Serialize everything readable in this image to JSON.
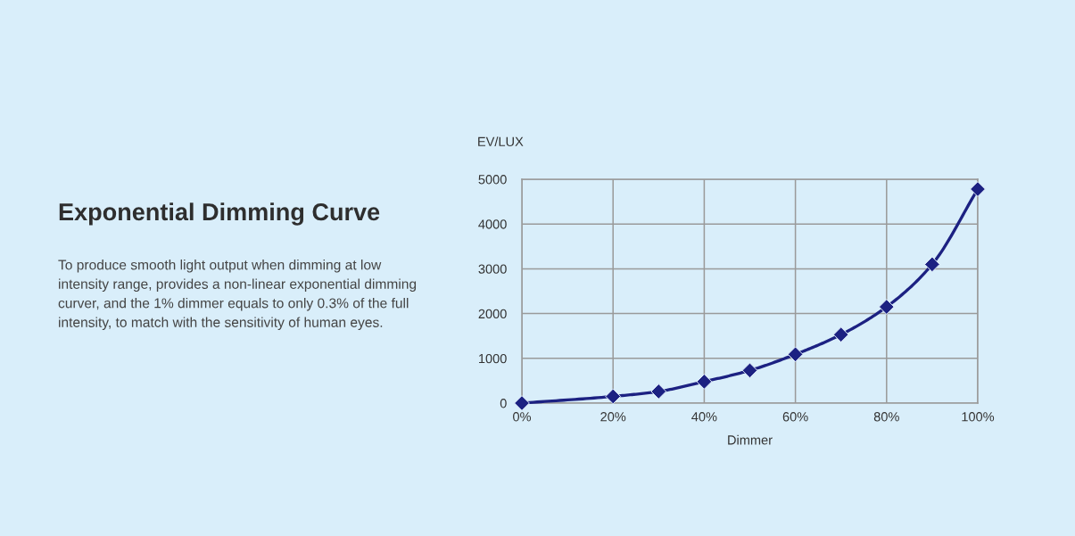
{
  "chart_data": {
    "type": "line",
    "title": "Exponential Dimming Curve",
    "annotations": [
      "To produce smooth light output when dimming at low intensity range, provides a non-linear exponential dimming curver, and the 1% dimmer equals to only 0.3% of the full intensity, to match with the sensitivity of human eyes."
    ],
    "xlabel": "Dimmer",
    "ylabel": "EV/LUX",
    "x": [
      0,
      20,
      30,
      40,
      50,
      60,
      70,
      80,
      90,
      100
    ],
    "series": [
      {
        "color": "#1c2182",
        "values": [
          0,
          150,
          260,
          480,
          730,
          1090,
          1530,
          2150,
          3100,
          4780
        ]
      }
    ],
    "xlim": [
      0,
      100
    ],
    "xticks": [
      {
        "value": 0,
        "label": "0%"
      },
      {
        "value": 20,
        "label": "20%"
      },
      {
        "value": 40,
        "label": "40%"
      },
      {
        "value": 60,
        "label": "60%"
      },
      {
        "value": 80,
        "label": "80%"
      },
      {
        "value": 100,
        "label": "100%"
      }
    ],
    "ylim": [
      0,
      5000
    ],
    "yticks": [
      0,
      1000,
      2000,
      3000,
      4000,
      5000
    ],
    "grid": true,
    "marker": "diamond",
    "line_style": "solid"
  }
}
